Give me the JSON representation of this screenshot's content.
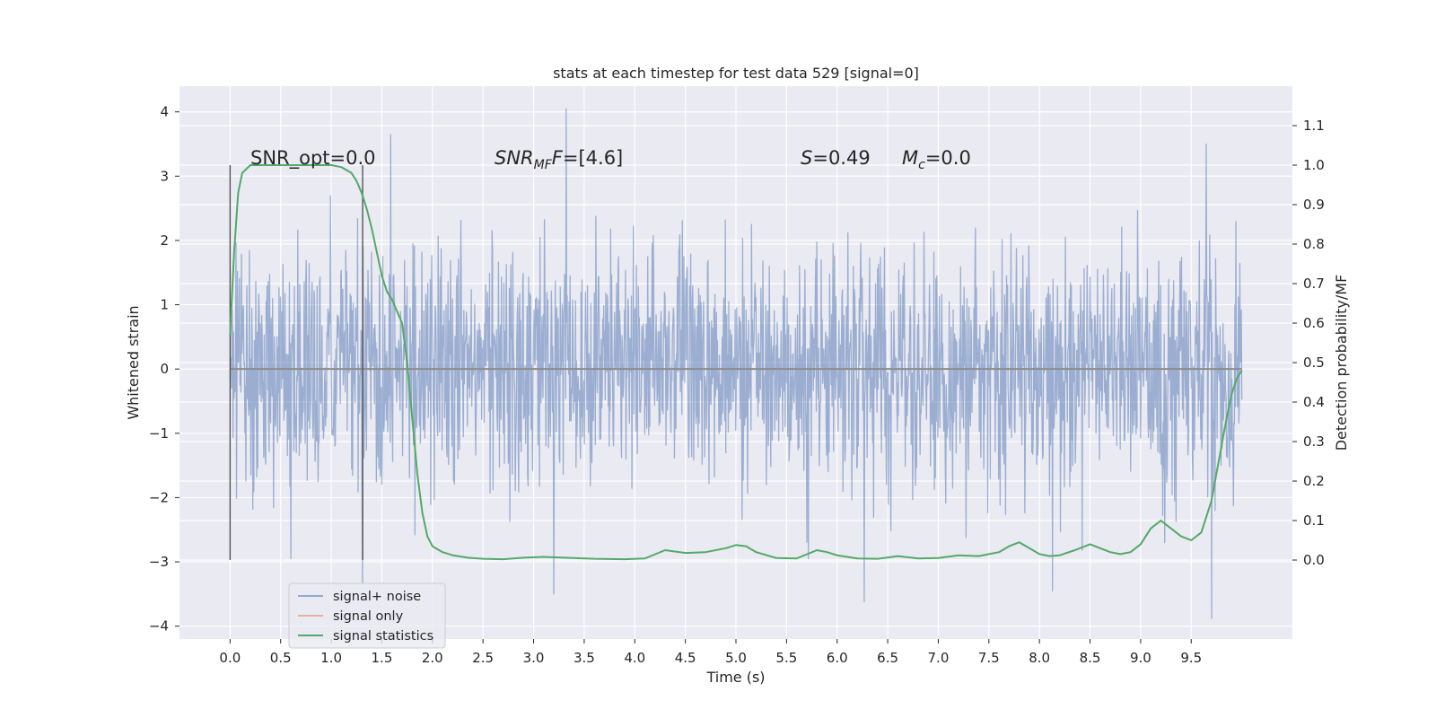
{
  "chart_data": {
    "type": "line",
    "title": "stats at each timestep for test data 529 [signal=0]",
    "xlabel": "Time (s)",
    "ylabel": "Whitened strain",
    "ylabel_right": "Detection probability/MF",
    "xlim": [
      -0.5,
      10.5
    ],
    "ylim": [
      -4.2,
      4.4
    ],
    "ylim_right": [
      -0.2,
      1.2
    ],
    "xticks": [
      "0.0",
      "0.5",
      "1.0",
      "1.5",
      "2.0",
      "2.5",
      "3.0",
      "3.5",
      "4.0",
      "4.5",
      "5.0",
      "5.5",
      "6.0",
      "6.5",
      "7.0",
      "7.5",
      "8.0",
      "8.5",
      "9.0",
      "9.5"
    ],
    "yticks": [
      "−4",
      "−3",
      "−2",
      "−1",
      "0",
      "1",
      "2",
      "3",
      "4"
    ],
    "yticks_right": [
      "0.0",
      "0.1",
      "0.2",
      "0.3",
      "0.4",
      "0.5",
      "0.6",
      "0.7",
      "0.8",
      "0.9",
      "1.0",
      "1.1"
    ],
    "grid": true,
    "legend_position": "lower-left",
    "annotations": {
      "snr_opt": "SNR_opt=0.0",
      "snr_mf_prefix": "SNR",
      "snr_mf_sub": "MF",
      "snr_mf_suffix": "=[4.6]",
      "s_symbol": "S",
      "s_value": "=0.49",
      "mc_symbol": "M",
      "mc_sub": "c",
      "mc_value": "=0.0"
    },
    "vlines_x": [
      0.0,
      1.31
    ],
    "series": [
      {
        "name": "signal+ noise",
        "color": "#4c72b0",
        "t_range": [
          0.0,
          10.0
        ],
        "n_samples": 2048,
        "sigma": 0.95,
        "random_seed": 529,
        "spikes": [
          {
            "t": 3.32,
            "v": 4.05
          },
          {
            "t": 1.59,
            "v": 3.65
          },
          {
            "t": 9.65,
            "v": 3.5
          },
          {
            "t": 9.7,
            "v": -3.88
          },
          {
            "t": 3.2,
            "v": -3.5
          },
          {
            "t": 6.27,
            "v": -3.62
          },
          {
            "t": 8.13,
            "v": -3.45
          },
          {
            "t": 1.31,
            "v": -3.35
          }
        ]
      },
      {
        "name": "signal only",
        "color": "#dd8452",
        "constant_value": 0.0
      },
      {
        "name": "signal statistics",
        "color": "#55a868",
        "axis": "right",
        "x": [
          0.0,
          0.04,
          0.08,
          0.12,
          0.16,
          0.2,
          0.3,
          0.5,
          0.8,
          1.0,
          1.1,
          1.2,
          1.25,
          1.3,
          1.35,
          1.4,
          1.45,
          1.5,
          1.55,
          1.6,
          1.65,
          1.7,
          1.75,
          1.8,
          1.85,
          1.9,
          1.95,
          2.0,
          2.1,
          2.2,
          2.35,
          2.5,
          2.7,
          2.9,
          3.1,
          3.3,
          3.6,
          3.9,
          4.1,
          4.3,
          4.5,
          4.7,
          4.9,
          5.0,
          5.1,
          5.2,
          5.4,
          5.6,
          5.8,
          5.9,
          6.0,
          6.2,
          6.4,
          6.6,
          6.8,
          7.0,
          7.2,
          7.4,
          7.6,
          7.7,
          7.8,
          7.9,
          8.0,
          8.1,
          8.2,
          8.35,
          8.5,
          8.6,
          8.7,
          8.8,
          8.9,
          9.0,
          9.1,
          9.2,
          9.3,
          9.4,
          9.5,
          9.6,
          9.7,
          9.75,
          9.8,
          9.85,
          9.9,
          9.95,
          10.0
        ],
        "y": [
          0.57,
          0.78,
          0.93,
          0.98,
          0.99,
          1.0,
          1.0,
          1.0,
          1.0,
          1.0,
          0.995,
          0.98,
          0.96,
          0.93,
          0.89,
          0.84,
          0.78,
          0.72,
          0.68,
          0.66,
          0.63,
          0.6,
          0.5,
          0.36,
          0.22,
          0.12,
          0.06,
          0.035,
          0.02,
          0.012,
          0.006,
          0.003,
          0.002,
          0.006,
          0.008,
          0.006,
          0.003,
          0.002,
          0.004,
          0.025,
          0.018,
          0.02,
          0.03,
          0.038,
          0.035,
          0.02,
          0.005,
          0.004,
          0.025,
          0.02,
          0.012,
          0.004,
          0.003,
          0.01,
          0.004,
          0.005,
          0.012,
          0.01,
          0.02,
          0.035,
          0.045,
          0.03,
          0.015,
          0.01,
          0.012,
          0.025,
          0.04,
          0.03,
          0.02,
          0.015,
          0.02,
          0.04,
          0.08,
          0.1,
          0.08,
          0.06,
          0.05,
          0.07,
          0.15,
          0.22,
          0.29,
          0.36,
          0.42,
          0.46,
          0.48
        ]
      }
    ]
  }
}
